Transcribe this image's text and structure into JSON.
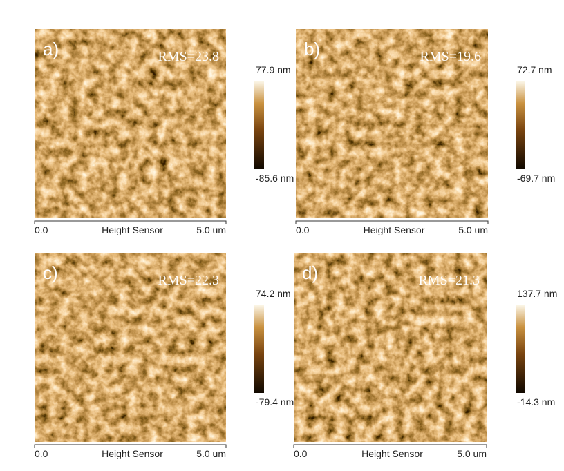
{
  "panels": [
    {
      "label": "a)",
      "rms": "RMS=23.8",
      "scale_max": "77.9 nm",
      "scale_min": "-85.6 nm",
      "axis_start": "0.0",
      "axis_title": "Height Sensor",
      "axis_end": "5.0 um"
    },
    {
      "label": "b)",
      "rms": "RMS=19.6",
      "scale_max": "72.7 nm",
      "scale_min": "-69.7 nm",
      "axis_start": "0.0",
      "axis_title": "Height Sensor",
      "axis_end": "5.0 um"
    },
    {
      "label": "c)",
      "rms": "RMS=22.3",
      "scale_max": "74.2 nm",
      "scale_min": "-79.4 nm",
      "axis_start": "0.0",
      "axis_title": "Height Sensor",
      "axis_end": "5.0 um"
    },
    {
      "label": "d)",
      "rms": "RMS=21.3",
      "scale_max": "137.7 nm",
      "scale_min": "-14.3 nm",
      "axis_start": "0.0",
      "axis_title": "Height Sensor",
      "axis_end": "5.0 um"
    }
  ]
}
